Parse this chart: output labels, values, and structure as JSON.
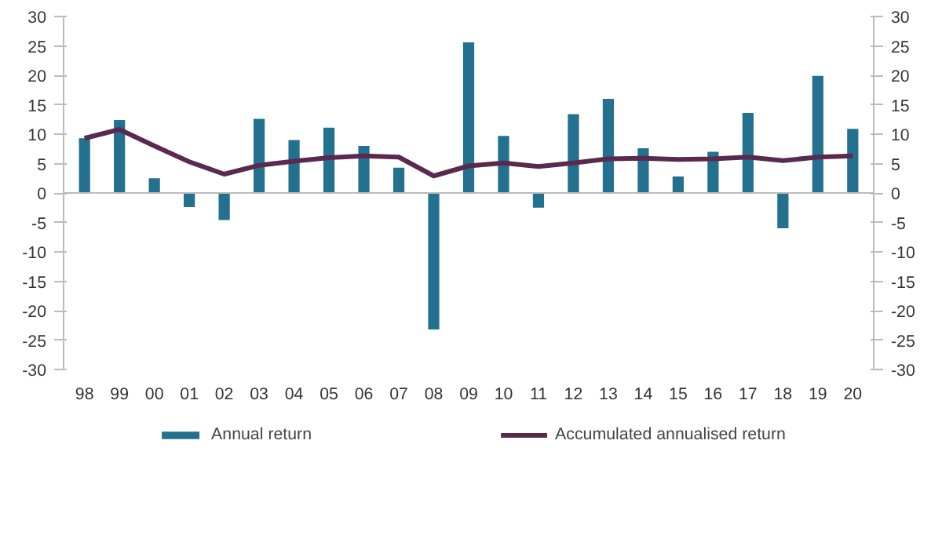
{
  "chart_data": {
    "type": "bar",
    "categories": [
      "98",
      "99",
      "00",
      "01",
      "02",
      "03",
      "04",
      "05",
      "06",
      "07",
      "08",
      "09",
      "10",
      "11",
      "12",
      "13",
      "14",
      "15",
      "16",
      "17",
      "18",
      "19",
      "20"
    ],
    "series": [
      {
        "name": "Annual return",
        "color": "#24708f",
        "values": [
          9.3,
          12.4,
          2.5,
          -2.4,
          -4.6,
          12.6,
          9.0,
          11.1,
          8.0,
          4.3,
          -23.2,
          25.6,
          9.7,
          -2.5,
          13.4,
          16.0,
          7.6,
          2.8,
          7.0,
          13.6,
          -6.0,
          19.9,
          10.9
        ]
      },
      {
        "name": "Accumulated annualised return",
        "type": "line",
        "color": "#5a2a4e",
        "values": [
          9.3,
          10.8,
          8.0,
          5.3,
          3.2,
          4.7,
          5.4,
          6.0,
          6.3,
          6.1,
          2.9,
          4.6,
          5.1,
          4.5,
          5.1,
          5.8,
          5.9,
          5.7,
          5.8,
          6.1,
          5.5,
          6.1,
          6.3
        ]
      }
    ],
    "ylim": [
      -30,
      30
    ],
    "yticks": [
      -30,
      -25,
      -20,
      -15,
      -10,
      -5,
      0,
      5,
      10,
      15,
      20,
      25,
      30
    ],
    "y2lim": [
      -30,
      30
    ],
    "y2ticks": [
      -30,
      -25,
      -20,
      -15,
      -10,
      -5,
      0,
      5,
      10,
      15,
      20,
      25,
      30
    ],
    "ref_lines": [
      {
        "axis": "y",
        "value": 0,
        "color": "#bbbbbb"
      }
    ],
    "grid": false,
    "legend": "bottom",
    "marker": "none",
    "line_style": "solid"
  }
}
